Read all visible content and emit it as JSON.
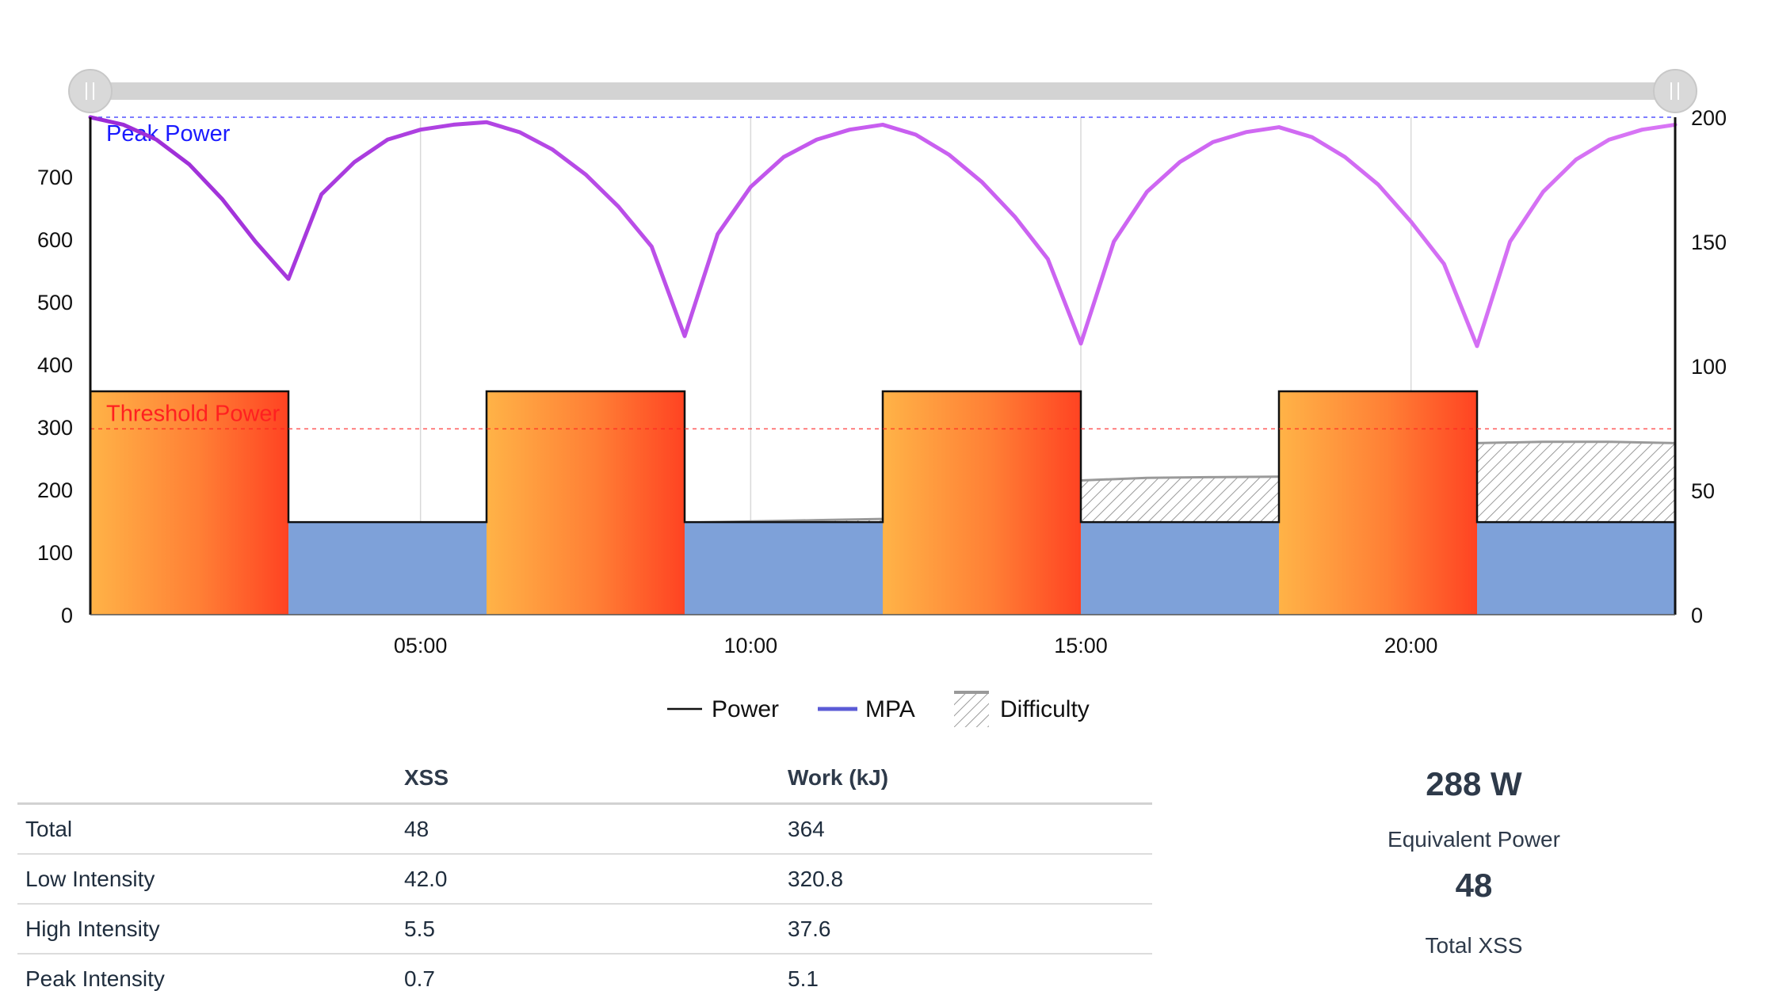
{
  "chart_data": {
    "type": "area",
    "x_unit": "minutes",
    "x_range": [
      0,
      24
    ],
    "x_ticks": [
      "05:00",
      "10:00",
      "15:00",
      "20:00"
    ],
    "y_left": {
      "range": [
        0,
        795
      ],
      "ticks": [
        0,
        100,
        200,
        300,
        400,
        500,
        600,
        700
      ]
    },
    "y_right": {
      "range": [
        0,
        200
      ],
      "ticks": [
        0,
        50,
        100,
        150,
        200
      ]
    },
    "reference_lines": [
      {
        "label": "Peak Power",
        "value": 795,
        "color": "#1a1aff"
      },
      {
        "label": "Threshold Power",
        "value": 297,
        "color": "#ff2020"
      }
    ],
    "series": [
      {
        "name": "Power",
        "segments": [
          {
            "start": 0,
            "end": 3,
            "value": 357
          },
          {
            "start": 3,
            "end": 6,
            "value": 148
          },
          {
            "start": 6,
            "end": 9,
            "value": 357
          },
          {
            "start": 9,
            "end": 12,
            "value": 148
          },
          {
            "start": 12,
            "end": 15,
            "value": 357
          },
          {
            "start": 15,
            "end": 18,
            "value": 148
          },
          {
            "start": 18,
            "end": 21,
            "value": 357
          },
          {
            "start": 21,
            "end": 24,
            "value": 148
          }
        ]
      },
      {
        "name": "MPA",
        "x": [
          0,
          0.5,
          1,
          1.5,
          2,
          2.5,
          3,
          3.5,
          4,
          4.5,
          5,
          5.5,
          6,
          6.5,
          7,
          7.5,
          8,
          8.5,
          9,
          9.5,
          10,
          10.5,
          11,
          11.5,
          12,
          12.5,
          13,
          13.5,
          14,
          14.5,
          15,
          15.5,
          16,
          16.5,
          17,
          17.5,
          18,
          18.5,
          19,
          19.5,
          20,
          20.5,
          21,
          21.5,
          22,
          22.5,
          23,
          23.5,
          24
        ],
        "values": [
          200,
          197,
          191,
          181,
          167,
          150,
          135,
          169,
          182,
          191,
          195,
          197,
          198,
          194,
          187,
          177,
          164,
          148,
          112,
          153,
          172,
          184,
          191,
          195,
          197,
          193,
          185,
          174,
          160,
          143,
          109,
          150,
          170,
          182,
          190,
          194,
          196,
          192,
          184,
          173,
          158,
          141,
          108,
          150,
          170,
          183,
          191,
          195,
          197
        ]
      },
      {
        "name": "Difficulty",
        "x": [
          9,
          10,
          11,
          12,
          15,
          16,
          17,
          18,
          21,
          22,
          23,
          24
        ],
        "values": [
          37,
          37.5,
          38,
          38.5,
          54,
          55,
          55.3,
          55.5,
          69,
          69.5,
          69.5,
          69
        ]
      }
    ],
    "legend": [
      "Power",
      "MPA",
      "Difficulty"
    ],
    "legend_position": "bottom"
  },
  "table": {
    "headers": [
      "",
      "XSS",
      "Work (kJ)"
    ],
    "rows": [
      [
        "Total",
        "48",
        "364"
      ],
      [
        "Low Intensity",
        "42.0",
        "320.8"
      ],
      [
        "High Intensity",
        "5.5",
        "37.6"
      ],
      [
        "Peak Intensity",
        "0.7",
        "5.1"
      ]
    ]
  },
  "summary": {
    "power_value": "288 W",
    "power_label": "Equivalent Power",
    "xss_value": "48",
    "xss_label": "Total XSS"
  }
}
